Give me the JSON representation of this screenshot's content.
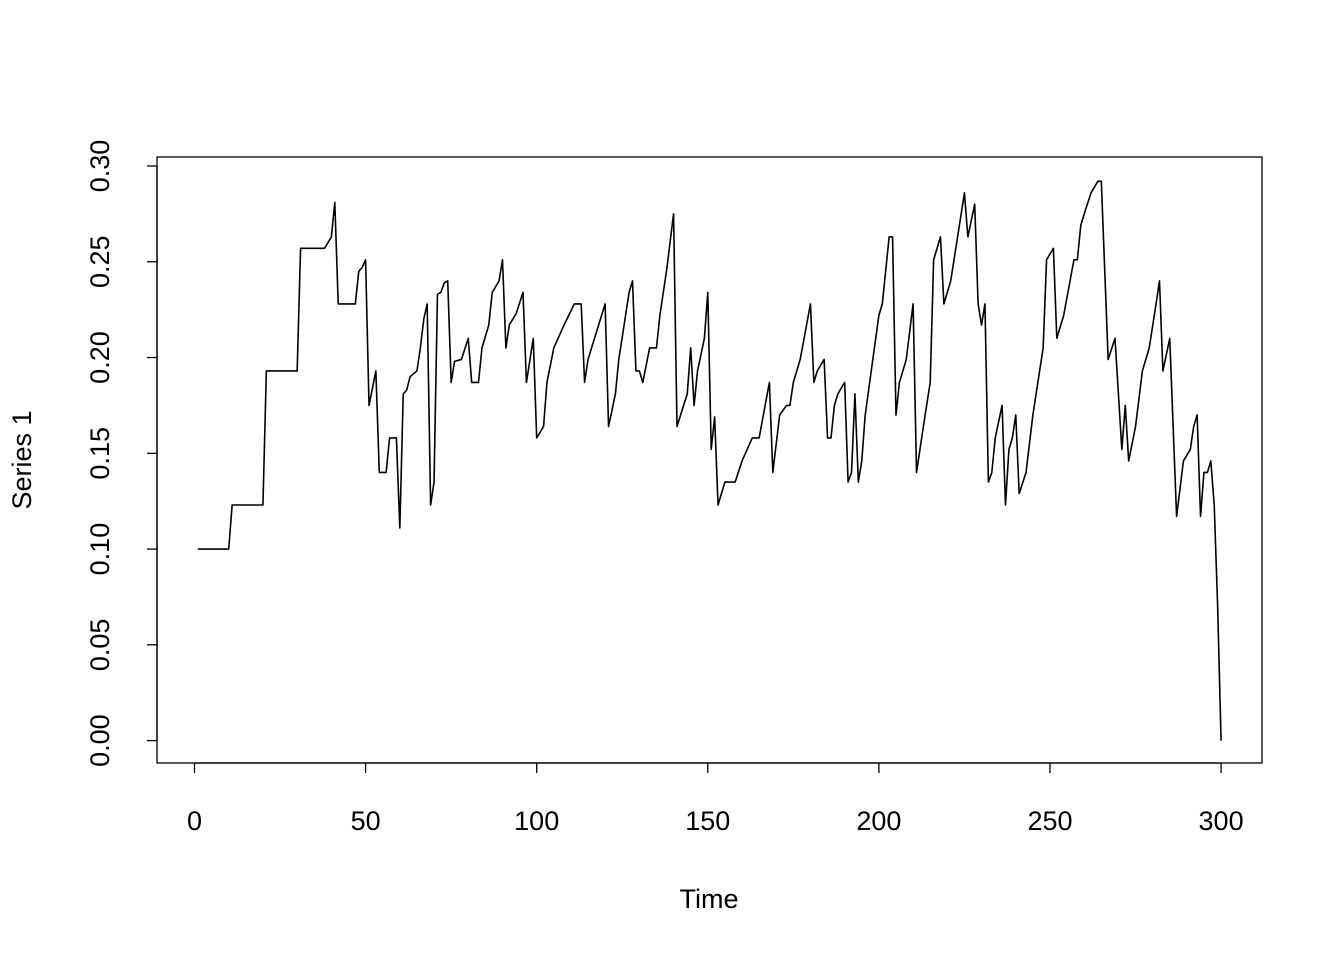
{
  "chart_data": {
    "type": "line",
    "xlabel": "Time",
    "ylabel": "Series 1",
    "color": "#000000",
    "x": [
      1,
      10,
      11,
      20,
      21,
      30,
      31,
      38,
      39,
      40,
      41,
      42,
      47,
      48,
      49,
      50,
      51,
      53,
      54,
      56,
      57,
      59,
      60,
      61,
      62,
      63,
      65,
      66,
      67,
      68,
      69,
      70,
      71,
      72,
      73,
      74,
      75,
      76,
      78,
      80,
      81,
      83,
      84,
      86,
      87,
      89,
      90,
      91,
      92,
      94,
      96,
      97,
      99,
      100,
      102,
      103,
      105,
      108,
      111,
      113,
      114,
      115,
      120,
      121,
      123,
      124,
      127,
      128,
      129,
      130,
      131,
      133,
      135,
      136,
      138,
      140,
      141,
      144,
      145,
      146,
      147,
      149,
      150,
      151,
      152,
      153,
      155,
      158,
      160,
      163,
      165,
      168,
      169,
      171,
      173,
      174,
      175,
      177,
      180,
      181,
      182,
      184,
      185,
      186,
      187,
      188,
      190,
      191,
      192,
      193,
      194,
      195,
      196,
      200,
      201,
      203,
      204,
      205,
      206,
      208,
      210,
      211,
      213,
      215,
      216,
      218,
      219,
      221,
      223,
      225,
      226,
      228,
      229,
      230,
      231,
      232,
      233,
      234,
      236,
      237,
      238,
      239,
      240,
      241,
      243,
      245,
      248,
      249,
      251,
      252,
      254,
      257,
      258,
      259,
      260,
      262,
      264,
      265,
      267,
      269,
      271,
      272,
      273,
      275,
      277,
      279,
      281,
      282,
      283,
      285,
      287,
      289,
      291,
      292,
      293,
      294,
      295,
      296,
      297,
      298,
      299,
      300
    ],
    "values": [
      0.1,
      0.1,
      0.123,
      0.123,
      0.193,
      0.193,
      0.257,
      0.257,
      0.26,
      0.263,
      0.281,
      0.228,
      0.228,
      0.245,
      0.247,
      0.251,
      0.175,
      0.193,
      0.14,
      0.14,
      0.158,
      0.158,
      0.111,
      0.181,
      0.183,
      0.19,
      0.193,
      0.205,
      0.22,
      0.228,
      0.123,
      0.135,
      0.233,
      0.234,
      0.239,
      0.24,
      0.187,
      0.198,
      0.199,
      0.21,
      0.187,
      0.187,
      0.205,
      0.217,
      0.234,
      0.24,
      0.251,
      0.205,
      0.217,
      0.223,
      0.234,
      0.187,
      0.21,
      0.158,
      0.164,
      0.187,
      0.205,
      0.217,
      0.228,
      0.228,
      0.187,
      0.199,
      0.228,
      0.164,
      0.181,
      0.199,
      0.234,
      0.24,
      0.193,
      0.193,
      0.187,
      0.205,
      0.205,
      0.222,
      0.246,
      0.275,
      0.164,
      0.181,
      0.205,
      0.175,
      0.193,
      0.21,
      0.234,
      0.152,
      0.169,
      0.123,
      0.135,
      0.135,
      0.146,
      0.158,
      0.158,
      0.187,
      0.14,
      0.17,
      0.175,
      0.175,
      0.187,
      0.199,
      0.228,
      0.187,
      0.193,
      0.199,
      0.158,
      0.158,
      0.175,
      0.181,
      0.187,
      0.135,
      0.14,
      0.181,
      0.135,
      0.146,
      0.17,
      0.222,
      0.228,
      0.263,
      0.263,
      0.17,
      0.187,
      0.199,
      0.228,
      0.14,
      0.164,
      0.187,
      0.251,
      0.263,
      0.228,
      0.24,
      0.263,
      0.286,
      0.263,
      0.28,
      0.228,
      0.217,
      0.228,
      0.135,
      0.14,
      0.158,
      0.175,
      0.123,
      0.152,
      0.158,
      0.17,
      0.129,
      0.14,
      0.17,
      0.205,
      0.251,
      0.257,
      0.21,
      0.222,
      0.251,
      0.251,
      0.269,
      0.275,
      0.286,
      0.292,
      0.292,
      0.199,
      0.21,
      0.152,
      0.175,
      0.146,
      0.164,
      0.193,
      0.205,
      0.228,
      0.24,
      0.193,
      0.21,
      0.117,
      0.146,
      0.152,
      0.164,
      0.17,
      0.117,
      0.14,
      0.14,
      0.146,
      0.123,
      0.07,
      0
    ],
    "xlim": [
      -10.96,
      311.96
    ],
    "ylim": [
      -0.0117,
      0.3047
    ],
    "xticks": [
      0,
      50,
      100,
      150,
      200,
      250,
      300
    ],
    "yticks": [
      {
        "value": 0,
        "label": "0.00"
      },
      {
        "value": 0.05,
        "label": "0.05"
      },
      {
        "value": 0.1,
        "label": "0.10"
      },
      {
        "value": 0.15,
        "label": "0.15"
      },
      {
        "value": 0.2,
        "label": "0.20"
      },
      {
        "value": 0.25,
        "label": "0.25"
      },
      {
        "value": 0.3,
        "label": "0.30"
      }
    ]
  }
}
